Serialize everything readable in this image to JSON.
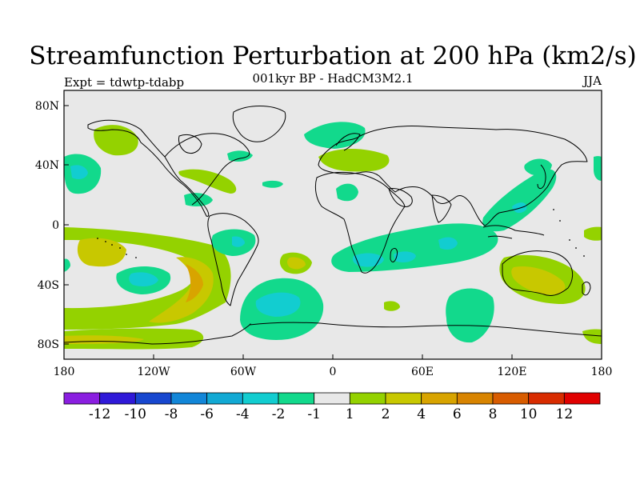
{
  "title": "Streamfunction Perturbation at 200 hPa (km2/s)",
  "subtitle": "001kyr BP - HadCM3M2.1",
  "experiment_label": "Expt = tdwtp-tdabp",
  "season": "JJA",
  "axes": {
    "x_ticks": [
      "180",
      "120W",
      "60W",
      "0",
      "60E",
      "120E",
      "180"
    ],
    "y_ticks": [
      "80N",
      "40N",
      "0",
      "40S",
      "80S"
    ]
  },
  "colorbar": {
    "labels": [
      "-12",
      "-10",
      "-8",
      "-6",
      "-4",
      "-2",
      "-1",
      "1",
      "2",
      "4",
      "6",
      "8",
      "10",
      "12"
    ],
    "colors": [
      "#8a1ee0",
      "#2f19d8",
      "#1747cf",
      "#1286d8",
      "#12a9d4",
      "#12cdd0",
      "#12d98c",
      "#e8e8e8",
      "#94d200",
      "#c8c800",
      "#d8a400",
      "#d88400",
      "#d85c00",
      "#d82c00",
      "#e00000"
    ]
  },
  "map_colors": {
    "neutral": "#e8e8e8",
    "pos1": "#94d200",
    "pos2": "#c8c800",
    "pos3": "#d8a400",
    "neg1": "#12d98c",
    "neg2": "#12cdd0",
    "neg3": "#12a9d4"
  }
}
